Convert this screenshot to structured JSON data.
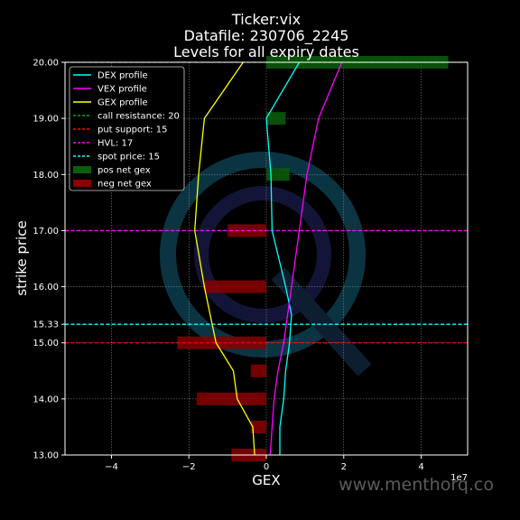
{
  "chart_data": {
    "type": "line",
    "title_lines": [
      "Ticker:vix",
      "Datafile: 230706_2245",
      "Levels for all expiry dates"
    ],
    "xlabel": "GEX",
    "ylabel": "strike price",
    "x_multiplier_label": "1e7",
    "xlim": [
      -5.2,
      5.2
    ],
    "ylim": [
      13.0,
      20.0
    ],
    "x_ticks": [
      -4,
      -2,
      0,
      2,
      4
    ],
    "x_tick_labels": [
      "−4",
      "−2",
      "0",
      "2",
      "4"
    ],
    "y_ticks": [
      13.0,
      14.0,
      15.0,
      15.33,
      16.0,
      17.0,
      18.0,
      19.0,
      20.0
    ],
    "y_tick_labels": [
      "13.00",
      "14.00",
      "15.00",
      "15.33",
      "16.00",
      "17.00",
      "18.00",
      "19.00",
      "20.00"
    ],
    "grid": true,
    "legend_position": "top-left",
    "series": [
      {
        "name": "DEX profile",
        "color": "#00ffff",
        "points": [
          [
            0.35,
            13.0
          ],
          [
            0.35,
            13.5
          ],
          [
            0.45,
            14.0
          ],
          [
            0.5,
            14.5
          ],
          [
            0.6,
            15.0
          ],
          [
            0.65,
            15.5
          ],
          [
            0.5,
            16.0
          ],
          [
            0.15,
            17.0
          ],
          [
            0.12,
            18.0
          ],
          [
            0.0,
            19.0
          ],
          [
            0.85,
            20.0
          ]
        ]
      },
      {
        "name": "VEX profile",
        "color": "#ff00ff",
        "points": [
          [
            0.1,
            13.0
          ],
          [
            0.15,
            13.5
          ],
          [
            0.2,
            14.0
          ],
          [
            0.3,
            14.5
          ],
          [
            0.45,
            15.0
          ],
          [
            0.55,
            15.5
          ],
          [
            0.65,
            16.0
          ],
          [
            0.85,
            17.0
          ],
          [
            1.05,
            18.0
          ],
          [
            1.35,
            19.0
          ],
          [
            1.95,
            20.0
          ]
        ]
      },
      {
        "name": "GEX profile",
        "color": "#ffff00",
        "points": [
          [
            -0.3,
            13.0
          ],
          [
            -0.35,
            13.5
          ],
          [
            -0.75,
            14.0
          ],
          [
            -0.85,
            14.5
          ],
          [
            -1.3,
            15.0
          ],
          [
            -1.45,
            15.5
          ],
          [
            -1.6,
            16.0
          ],
          [
            -1.85,
            17.0
          ],
          [
            -1.75,
            18.0
          ],
          [
            -1.6,
            19.0
          ],
          [
            -0.6,
            20.0
          ]
        ]
      }
    ],
    "levels": [
      {
        "name": "call resistance: 20",
        "y": 20.0,
        "color": "#00aa00"
      },
      {
        "name": "put support: 15",
        "y": 15.0,
        "color": "#ff0000"
      },
      {
        "name": "HVL: 17",
        "y": 17.0,
        "color": "#ff00ff"
      },
      {
        "name": "spot price: 15",
        "y": 15.33,
        "color": "#00ffff"
      }
    ],
    "pos_net_gex": {
      "name": "pos net gex",
      "color": "#0b5e0b",
      "bars": [
        {
          "y": 18.0,
          "x": 0.6
        },
        {
          "y": 19.0,
          "x": 0.5
        },
        {
          "y": 20.0,
          "x": 4.7
        }
      ]
    },
    "neg_net_gex": {
      "name": "neg net gex",
      "color": "#8b0000",
      "bars": [
        {
          "y": 13.0,
          "x": -0.9
        },
        {
          "y": 13.5,
          "x": -0.4
        },
        {
          "y": 14.0,
          "x": -1.8
        },
        {
          "y": 14.5,
          "x": -0.4
        },
        {
          "y": 15.0,
          "x": -2.3
        },
        {
          "y": 16.0,
          "x": -1.6
        },
        {
          "y": 17.0,
          "x": -1.0
        }
      ]
    }
  },
  "watermark": "www.menthorq.co"
}
